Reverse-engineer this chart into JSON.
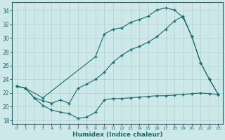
{
  "xlabel": "Humidex (Indice chaleur)",
  "xlim": [
    -0.5,
    23.5
  ],
  "ylim": [
    17.5,
    35.2
  ],
  "xticks": [
    0,
    1,
    2,
    3,
    4,
    5,
    6,
    7,
    8,
    9,
    10,
    11,
    12,
    13,
    14,
    15,
    16,
    17,
    18,
    19,
    20,
    21,
    22,
    23
  ],
  "yticks": [
    18,
    20,
    22,
    24,
    26,
    28,
    30,
    32,
    34
  ],
  "bg_color": "#cce8e8",
  "line_color": "#1a6b6b",
  "grid_color": "#b0d0d0",
  "line1_x": [
    0,
    1,
    2,
    3,
    4,
    5,
    6,
    7,
    8,
    9,
    10,
    11,
    12,
    13,
    14,
    15,
    16,
    17,
    18,
    19,
    20,
    21,
    22,
    23
  ],
  "line1_y": [
    23.0,
    22.7,
    21.3,
    20.2,
    19.5,
    19.2,
    19.0,
    18.3,
    18.5,
    19.2,
    21.0,
    21.2,
    21.2,
    21.3,
    21.4,
    21.5,
    21.6,
    21.6,
    21.7,
    21.8,
    21.9,
    22.0,
    21.9,
    21.8
  ],
  "line2_x": [
    0,
    1,
    3,
    9,
    10,
    11,
    12,
    13,
    14,
    15,
    16,
    17,
    18,
    19,
    20,
    21,
    22,
    23
  ],
  "line2_y": [
    23.0,
    22.7,
    21.3,
    27.3,
    30.6,
    31.3,
    31.5,
    32.3,
    32.7,
    33.2,
    34.1,
    34.4,
    34.1,
    33.0,
    30.2,
    26.4,
    24.0,
    21.8
  ],
  "line3_x": [
    0,
    1,
    2,
    3,
    4,
    5,
    6,
    7,
    8,
    9,
    10,
    11,
    12,
    13,
    14,
    15,
    16,
    17,
    18,
    19,
    20,
    21,
    22,
    23
  ],
  "line3_y": [
    23.0,
    22.7,
    21.3,
    20.9,
    20.5,
    21.0,
    20.5,
    22.7,
    23.3,
    24.0,
    25.0,
    26.5,
    27.5,
    28.3,
    28.8,
    29.4,
    30.2,
    31.3,
    32.5,
    33.2,
    30.2,
    26.4,
    24.0,
    21.8
  ]
}
